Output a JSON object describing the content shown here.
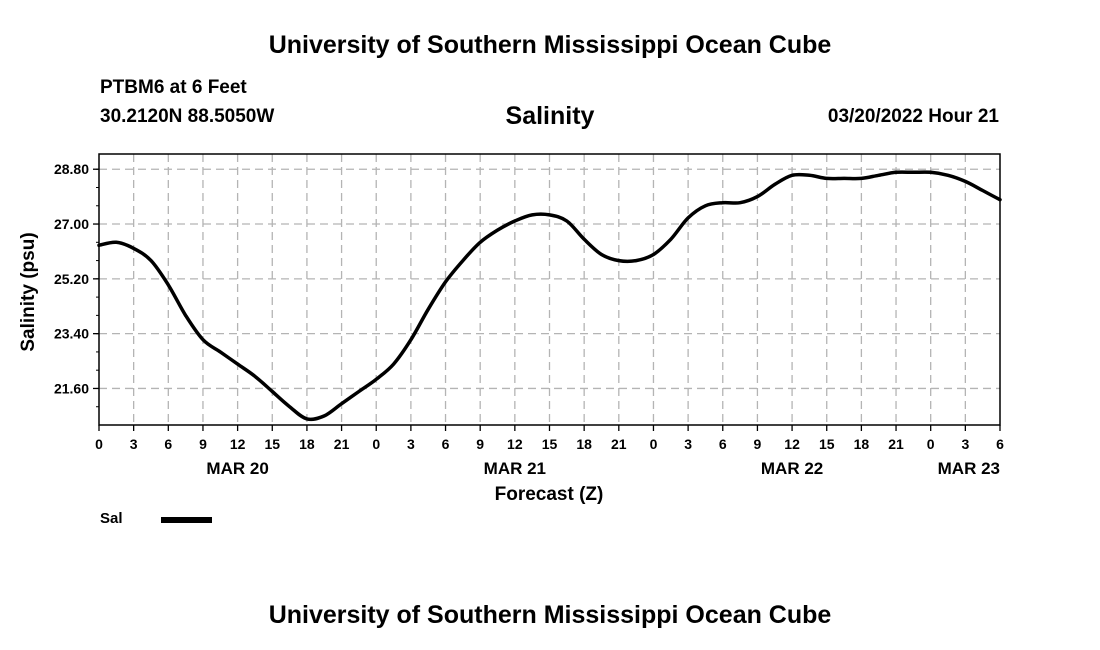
{
  "header": {
    "title": "University of Southern Mississippi Ocean Cube",
    "station": "PTBM6 at 6 Feet",
    "coords": "30.2120N  88.5050W",
    "datetime": "03/20/2022 Hour 21"
  },
  "footer": {
    "title": "University of Southern Mississippi Ocean Cube"
  },
  "legend": {
    "label": "Sal",
    "color": "#000000"
  },
  "chart_data": {
    "type": "line",
    "title": "Salinity",
    "xlabel": "Forecast (Z)",
    "ylabel": "Salinity (psu)",
    "xlim": [
      0,
      78
    ],
    "ylim": [
      20.4,
      29.3
    ],
    "yticks": [
      "28.80",
      "27.00",
      "25.20",
      "23.40",
      "21.60"
    ],
    "ytick_values": [
      28.8,
      27.0,
      25.2,
      23.4,
      21.6
    ],
    "xtick_labels": [
      "0",
      "3",
      "6",
      "9",
      "12",
      "15",
      "18",
      "21",
      "0",
      "3",
      "6",
      "9",
      "12",
      "15",
      "18",
      "21",
      "0",
      "3",
      "6",
      "9",
      "12",
      "15",
      "18",
      "21",
      "0",
      "3",
      "6"
    ],
    "day_labels": [
      {
        "label": "MAR 20",
        "hour": 12
      },
      {
        "label": "MAR 21",
        "hour": 36
      },
      {
        "label": "MAR 22",
        "hour": 60
      },
      {
        "label": "MAR 23",
        "hour": 78
      }
    ],
    "grid": true,
    "series": [
      {
        "name": "Sal",
        "color": "#000000",
        "x": [
          0,
          1.5,
          3,
          4.5,
          6,
          7.5,
          9,
          10.5,
          12,
          13.5,
          15,
          16.5,
          18,
          19.5,
          21,
          22.5,
          24,
          25.5,
          27,
          28.5,
          30,
          31.5,
          33,
          34.5,
          36,
          37.5,
          39,
          40.5,
          42,
          43.5,
          45,
          46.5,
          48,
          49.5,
          51,
          52.5,
          54,
          55.5,
          57,
          58.5,
          60,
          61.5,
          63,
          64.5,
          66,
          67.5,
          69,
          70.5,
          72,
          73.5,
          75,
          76.5,
          78
        ],
        "values": [
          26.3,
          26.4,
          26.2,
          25.8,
          25.0,
          24.0,
          23.2,
          22.8,
          22.4,
          22.0,
          21.5,
          21.0,
          20.6,
          20.7,
          21.1,
          21.5,
          21.9,
          22.4,
          23.2,
          24.2,
          25.1,
          25.8,
          26.4,
          26.8,
          27.1,
          27.3,
          27.3,
          27.1,
          26.5,
          26.0,
          25.8,
          25.8,
          26.0,
          26.5,
          27.2,
          27.6,
          27.7,
          27.7,
          27.9,
          28.3,
          28.6,
          28.6,
          28.5,
          28.5,
          28.5,
          28.6,
          28.7,
          28.7,
          28.7,
          28.6,
          28.4,
          28.1,
          27.8
        ]
      }
    ]
  }
}
